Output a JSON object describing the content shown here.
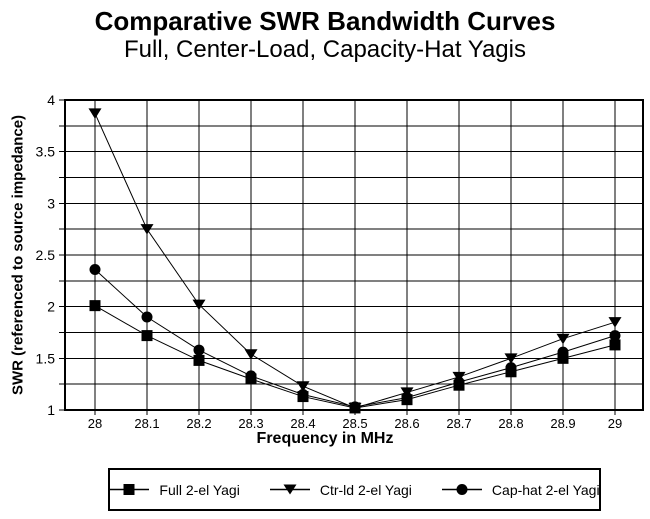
{
  "title": "Comparative SWR Bandwidth Curves",
  "subtitle": "Full, Center-Load, Capacity-Hat Yagis",
  "chart_data": {
    "type": "line",
    "title": "Comparative SWR Bandwidth Curves",
    "subtitle": "Full, Center-Load, Capacity-Hat Yagis",
    "xlabel": "Frequency in MHz",
    "ylabel": "SWR (referenced to source impedance)",
    "x": [
      28,
      28.1,
      28.2,
      28.3,
      28.4,
      28.5,
      28.6,
      28.7,
      28.8,
      28.9,
      29
    ],
    "x_tick_labels": [
      "28",
      "28.1",
      "28.2",
      "28.3",
      "28.4",
      "28.5",
      "28.6",
      "28.7",
      "28.8",
      "28.9",
      "29"
    ],
    "series": [
      {
        "name": "Full 2-el Yagi",
        "marker": "square",
        "color": "#000000",
        "values": [
          2.01,
          1.72,
          1.48,
          1.3,
          1.13,
          1.02,
          1.1,
          1.24,
          1.37,
          1.5,
          1.63
        ]
      },
      {
        "name": "Ctr-ld 2-el Yagi",
        "marker": "triangle-down",
        "color": "#000000",
        "values": [
          3.87,
          2.75,
          2.02,
          1.54,
          1.23,
          1.02,
          1.17,
          1.32,
          1.5,
          1.69,
          1.85
        ]
      },
      {
        "name": "Cap-hat 2-el Yagi",
        "marker": "circle",
        "color": "#000000",
        "values": [
          2.36,
          1.9,
          1.58,
          1.33,
          1.15,
          1.03,
          1.12,
          1.27,
          1.41,
          1.56,
          1.72
        ]
      }
    ],
    "ylim": [
      1,
      4
    ],
    "y_major_ticks": [
      1,
      1.5,
      2,
      2.5,
      3,
      3.5,
      4
    ],
    "y_grid_step": 0.25,
    "grid": true,
    "legend_position": "bottom",
    "line_color": "#000000",
    "grid_color": "#000000",
    "background": "#ffffff"
  }
}
